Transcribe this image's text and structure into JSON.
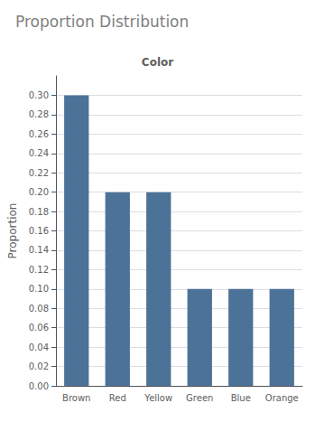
{
  "chart_data": {
    "type": "bar",
    "title": "Proportion Distribution",
    "subtitle": "Color",
    "categories": [
      "Brown",
      "Red",
      "Yellow",
      "Green",
      "Blue",
      "Orange"
    ],
    "values": [
      0.3,
      0.2,
      0.2,
      0.1,
      0.1,
      0.1
    ],
    "color": "#4d7298",
    "ylabel": "Proportion",
    "ylim": [
      0.0,
      0.32
    ],
    "yticks": [
      {
        "value": 0.0,
        "label": "0.00"
      },
      0.02,
      0.04,
      0.06,
      0.08,
      {
        "value": 0.1,
        "label": "0.10"
      },
      0.12,
      0.14,
      0.16,
      0.18,
      {
        "value": 0.2,
        "label": "0.20"
      },
      0.22,
      0.24,
      0.26,
      0.28,
      {
        "value": 0.3,
        "label": "0.30"
      }
    ],
    "grid": true
  }
}
